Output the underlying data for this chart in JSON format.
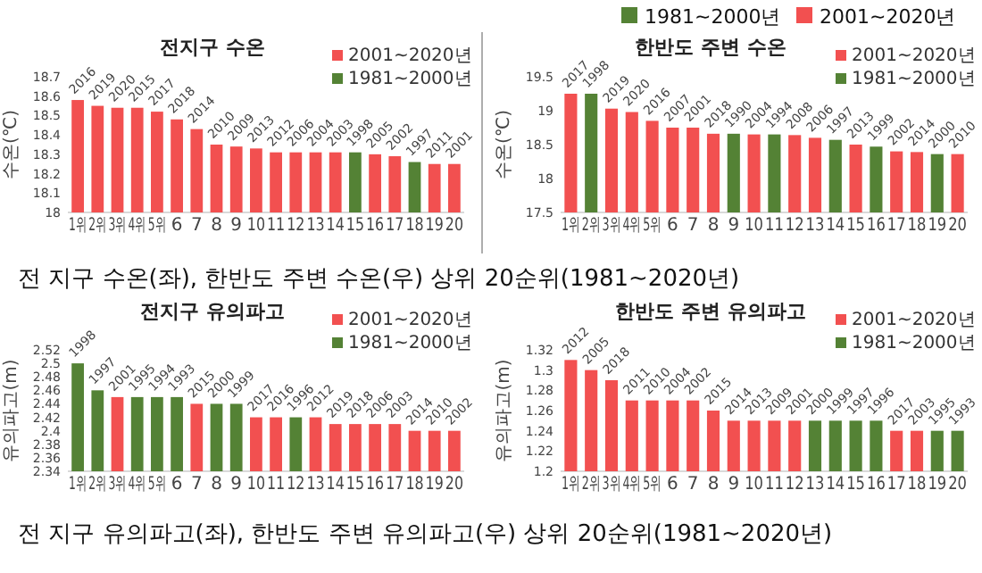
{
  "chart_data": [
    {
      "type": "bar",
      "title": "전지구 수온",
      "ylabel": "수온(℃)",
      "categories": [
        "1위",
        "2위",
        "3위",
        "4위",
        "5위",
        "6",
        "7",
        "8",
        "9",
        "10",
        "11",
        "12",
        "13",
        "14",
        "15",
        "16",
        "17",
        "18",
        "19",
        "20"
      ],
      "stacked": true,
      "legend": "top right",
      "ylim": [
        18,
        18.7
      ],
      "yticks": [
        18,
        18.1,
        18.2,
        18.3,
        18.4,
        18.5,
        18.6,
        18.7
      ],
      "series": [
        {
          "name": "2001~2020년",
          "color": "#f25050",
          "values": [
            18.58,
            18.55,
            18.54,
            18.54,
            18.52,
            18.48,
            18.43,
            18.35,
            18.34,
            18.33,
            18.31,
            18.31,
            18.31,
            18.31,
            null,
            18.3,
            18.29,
            null,
            18.25,
            18.25
          ]
        },
        {
          "name": "1981~2000년",
          "color": "#548235",
          "values": [
            null,
            null,
            null,
            null,
            null,
            null,
            null,
            null,
            null,
            null,
            null,
            null,
            null,
            null,
            18.31,
            null,
            null,
            18.26,
            null,
            null
          ]
        }
      ],
      "annotations": [
        {
          "text": "2016",
          "x": "1위",
          "y": 18.58
        },
        {
          "text": "2019",
          "x": "2위",
          "y": 18.55
        },
        {
          "text": "2020",
          "x": "3위",
          "y": 18.54
        },
        {
          "text": "2015",
          "x": "4위",
          "y": 18.54
        },
        {
          "text": "2017",
          "x": "5위",
          "y": 18.52
        },
        {
          "text": "2018",
          "x": "6",
          "y": 18.48
        },
        {
          "text": "2014",
          "x": "7",
          "y": 18.43
        },
        {
          "text": "2010",
          "x": "8",
          "y": 18.35
        },
        {
          "text": "2009",
          "x": "9",
          "y": 18.34
        },
        {
          "text": "2013",
          "x": "10",
          "y": 18.33
        },
        {
          "text": "2012",
          "x": "11",
          "y": 18.31
        },
        {
          "text": "2006",
          "x": "12",
          "y": 18.31
        },
        {
          "text": "2004",
          "x": "13",
          "y": 18.31
        },
        {
          "text": "2003",
          "x": "14",
          "y": 18.31
        },
        {
          "text": "1998",
          "x": "15",
          "y": 18.31
        },
        {
          "text": "2005",
          "x": "16",
          "y": 18.3
        },
        {
          "text": "2002",
          "x": "17",
          "y": 18.29
        },
        {
          "text": "1997",
          "x": "18",
          "y": 18.26
        },
        {
          "text": "2011",
          "x": "19",
          "y": 18.25
        },
        {
          "text": "2001",
          "x": "20",
          "y": 18.25
        },
        "전 지구 수온(좌), 한반도 주변 수온(우) 상위 20순위(1981~2020년)"
      ]
    },
    {
      "type": "bar",
      "title": "한반도 주변 수온",
      "ylabel": "수온(℃)",
      "categories": [
        "1위",
        "2위",
        "3위",
        "4위",
        "5위",
        "6",
        "7",
        "8",
        "9",
        "10",
        "11",
        "12",
        "13",
        "14",
        "15",
        "16",
        "17",
        "18",
        "19",
        "20"
      ],
      "stacked": true,
      "legend": "top right",
      "ylim": [
        17.5,
        19.5
      ],
      "yticks": [
        17.5,
        18,
        18.5,
        19,
        19.5
      ],
      "series": [
        {
          "name": "2001~2020년",
          "color": "#f25050",
          "values": [
            19.25,
            null,
            19.03,
            18.98,
            18.85,
            18.75,
            18.75,
            18.66,
            null,
            18.65,
            null,
            18.64,
            18.6,
            null,
            18.5,
            null,
            18.4,
            18.39,
            null,
            18.36
          ]
        },
        {
          "name": "1981~2000년",
          "color": "#548235",
          "values": [
            null,
            19.25,
            null,
            null,
            null,
            null,
            null,
            null,
            18.66,
            null,
            18.65,
            null,
            null,
            18.57,
            null,
            18.47,
            null,
            null,
            18.36,
            null
          ]
        }
      ],
      "annotations": [
        {
          "text": "2017",
          "x": "1위",
          "y": 19.25
        },
        {
          "text": "1998",
          "x": "2위",
          "y": 19.25
        },
        {
          "text": "2019",
          "x": "3위",
          "y": 19.03
        },
        {
          "text": "2020",
          "x": "4위",
          "y": 18.98
        },
        {
          "text": "2016",
          "x": "5위",
          "y": 18.85
        },
        {
          "text": "2007",
          "x": "6",
          "y": 18.75
        },
        {
          "text": "2001",
          "x": "7",
          "y": 18.75
        },
        {
          "text": "2018",
          "x": "8",
          "y": 18.66
        },
        {
          "text": "1990",
          "x": "9",
          "y": 18.66
        },
        {
          "text": "2004",
          "x": "10",
          "y": 18.65
        },
        {
          "text": "1994",
          "x": "11",
          "y": 18.65
        },
        {
          "text": "2008",
          "x": "12",
          "y": 18.64
        },
        {
          "text": "2006",
          "x": "13",
          "y": 18.6
        },
        {
          "text": "1997",
          "x": "14",
          "y": 18.57
        },
        {
          "text": "2013",
          "x": "15",
          "y": 18.5
        },
        {
          "text": "1999",
          "x": "16",
          "y": 18.47
        },
        {
          "text": "2002",
          "x": "17",
          "y": 18.4
        },
        {
          "text": "2014",
          "x": "18",
          "y": 18.39
        },
        {
          "text": "2000",
          "x": "19",
          "y": 18.36
        },
        {
          "text": "2010",
          "x": "20",
          "y": 18.36
        },
        "1981~2000년",
        "2001~2020년"
      ]
    },
    {
      "type": "bar",
      "title": "전지구 유의파고",
      "ylabel": "유의파고(m)",
      "categories": [
        "1위",
        "2위",
        "3위",
        "4위",
        "5위",
        "6",
        "7",
        "8",
        "9",
        "10",
        "11",
        "12",
        "13",
        "14",
        "15",
        "16",
        "17",
        "18",
        "19",
        "20"
      ],
      "stacked": true,
      "legend": "top right",
      "ylim": [
        2.34,
        2.52
      ],
      "yticks": [
        2.34,
        2.36,
        2.38,
        2.4,
        2.42,
        2.44,
        2.46,
        2.48,
        2.5,
        2.52
      ],
      "series": [
        {
          "name": "2001~2020년",
          "color": "#f25050",
          "values": [
            null,
            null,
            2.45,
            null,
            null,
            null,
            2.44,
            null,
            null,
            2.42,
            2.42,
            null,
            2.42,
            2.41,
            2.41,
            2.41,
            2.41,
            2.4,
            2.4,
            2.4
          ]
        },
        {
          "name": "1981~2000년",
          "color": "#548235",
          "values": [
            2.5,
            2.46,
            null,
            2.45,
            2.45,
            2.45,
            null,
            2.44,
            2.44,
            null,
            null,
            2.42,
            null,
            null,
            null,
            null,
            null,
            null,
            null,
            null
          ]
        }
      ],
      "annotations": [
        {
          "text": "1998",
          "x": "1위",
          "y": 2.5
        },
        {
          "text": "1997",
          "x": "2위",
          "y": 2.46
        },
        {
          "text": "2001",
          "x": "3위",
          "y": 2.45
        },
        {
          "text": "1995",
          "x": "4위",
          "y": 2.45
        },
        {
          "text": "1994",
          "x": "5위",
          "y": 2.45
        },
        {
          "text": "1993",
          "x": "6",
          "y": 2.45
        },
        {
          "text": "2015",
          "x": "7",
          "y": 2.44
        },
        {
          "text": "2000",
          "x": "8",
          "y": 2.44
        },
        {
          "text": "1999",
          "x": "9",
          "y": 2.44
        },
        {
          "text": "2017",
          "x": "10",
          "y": 2.42
        },
        {
          "text": "2016",
          "x": "11",
          "y": 2.42
        },
        {
          "text": "1996",
          "x": "12",
          "y": 2.42
        },
        {
          "text": "2012",
          "x": "13",
          "y": 2.42
        },
        {
          "text": "2019",
          "x": "14",
          "y": 2.41
        },
        {
          "text": "2018",
          "x": "15",
          "y": 2.41
        },
        {
          "text": "2006",
          "x": "16",
          "y": 2.41
        },
        {
          "text": "2003",
          "x": "17",
          "y": 2.41
        },
        {
          "text": "2014",
          "x": "18",
          "y": 2.4
        },
        {
          "text": "2010",
          "x": "19",
          "y": 2.4
        },
        {
          "text": "2002",
          "x": "20",
          "y": 2.4
        },
        "전 지구 유의파고(좌), 한반도 주변 유의파고(우) 상위 20순위(1981~2020년)"
      ]
    },
    {
      "type": "bar",
      "title": "한반도 주변 유의파고",
      "ylabel": "유의파고(m)",
      "categories": [
        "1위",
        "2위",
        "3위",
        "4위",
        "5위",
        "6",
        "7",
        "8",
        "9",
        "10",
        "11",
        "12",
        "13",
        "14",
        "15",
        "16",
        "17",
        "18",
        "19",
        "20"
      ],
      "stacked": true,
      "legend": "top right",
      "ylim": [
        1.2,
        1.32
      ],
      "yticks": [
        1.2,
        1.22,
        1.24,
        1.26,
        1.28,
        1.3,
        1.32
      ],
      "series": [
        {
          "name": "2001~2020년",
          "color": "#f25050",
          "values": [
            1.31,
            1.3,
            1.29,
            1.27,
            1.27,
            1.27,
            1.27,
            1.26,
            1.25,
            1.25,
            1.25,
            1.25,
            null,
            null,
            null,
            null,
            1.24,
            1.24,
            null,
            null
          ]
        },
        {
          "name": "1981~2000년",
          "color": "#548235",
          "values": [
            null,
            null,
            null,
            null,
            null,
            null,
            null,
            null,
            null,
            null,
            null,
            null,
            1.25,
            1.25,
            1.25,
            1.25,
            null,
            null,
            1.24,
            1.24
          ]
        }
      ],
      "annotations": [
        {
          "text": "2012",
          "x": "1위",
          "y": 1.31
        },
        {
          "text": "2005",
          "x": "2위",
          "y": 1.3
        },
        {
          "text": "2018",
          "x": "3위",
          "y": 1.29
        },
        {
          "text": "2011",
          "x": "4위",
          "y": 1.27
        },
        {
          "text": "2010",
          "x": "5위",
          "y": 1.27
        },
        {
          "text": "2004",
          "x": "6",
          "y": 1.27
        },
        {
          "text": "2002",
          "x": "7",
          "y": 1.27
        },
        {
          "text": "2015",
          "x": "8",
          "y": 1.26
        },
        {
          "text": "2014",
          "x": "9",
          "y": 1.25
        },
        {
          "text": "2013",
          "x": "10",
          "y": 1.25
        },
        {
          "text": "2009",
          "x": "11",
          "y": 1.25
        },
        {
          "text": "2001",
          "x": "12",
          "y": 1.25
        },
        {
          "text": "2000",
          "x": "13",
          "y": 1.25
        },
        {
          "text": "1999",
          "x": "14",
          "y": 1.25
        },
        {
          "text": "1997",
          "x": "15",
          "y": 1.25
        },
        {
          "text": "1996",
          "x": "16",
          "y": 1.25
        },
        {
          "text": "2017",
          "x": "17",
          "y": 1.24
        },
        {
          "text": "2003",
          "x": "18",
          "y": 1.24
        },
        {
          "text": "1995",
          "x": "19",
          "y": 1.24
        },
        {
          "text": "1993",
          "x": "20",
          "y": 1.24
        }
      ]
    }
  ]
}
